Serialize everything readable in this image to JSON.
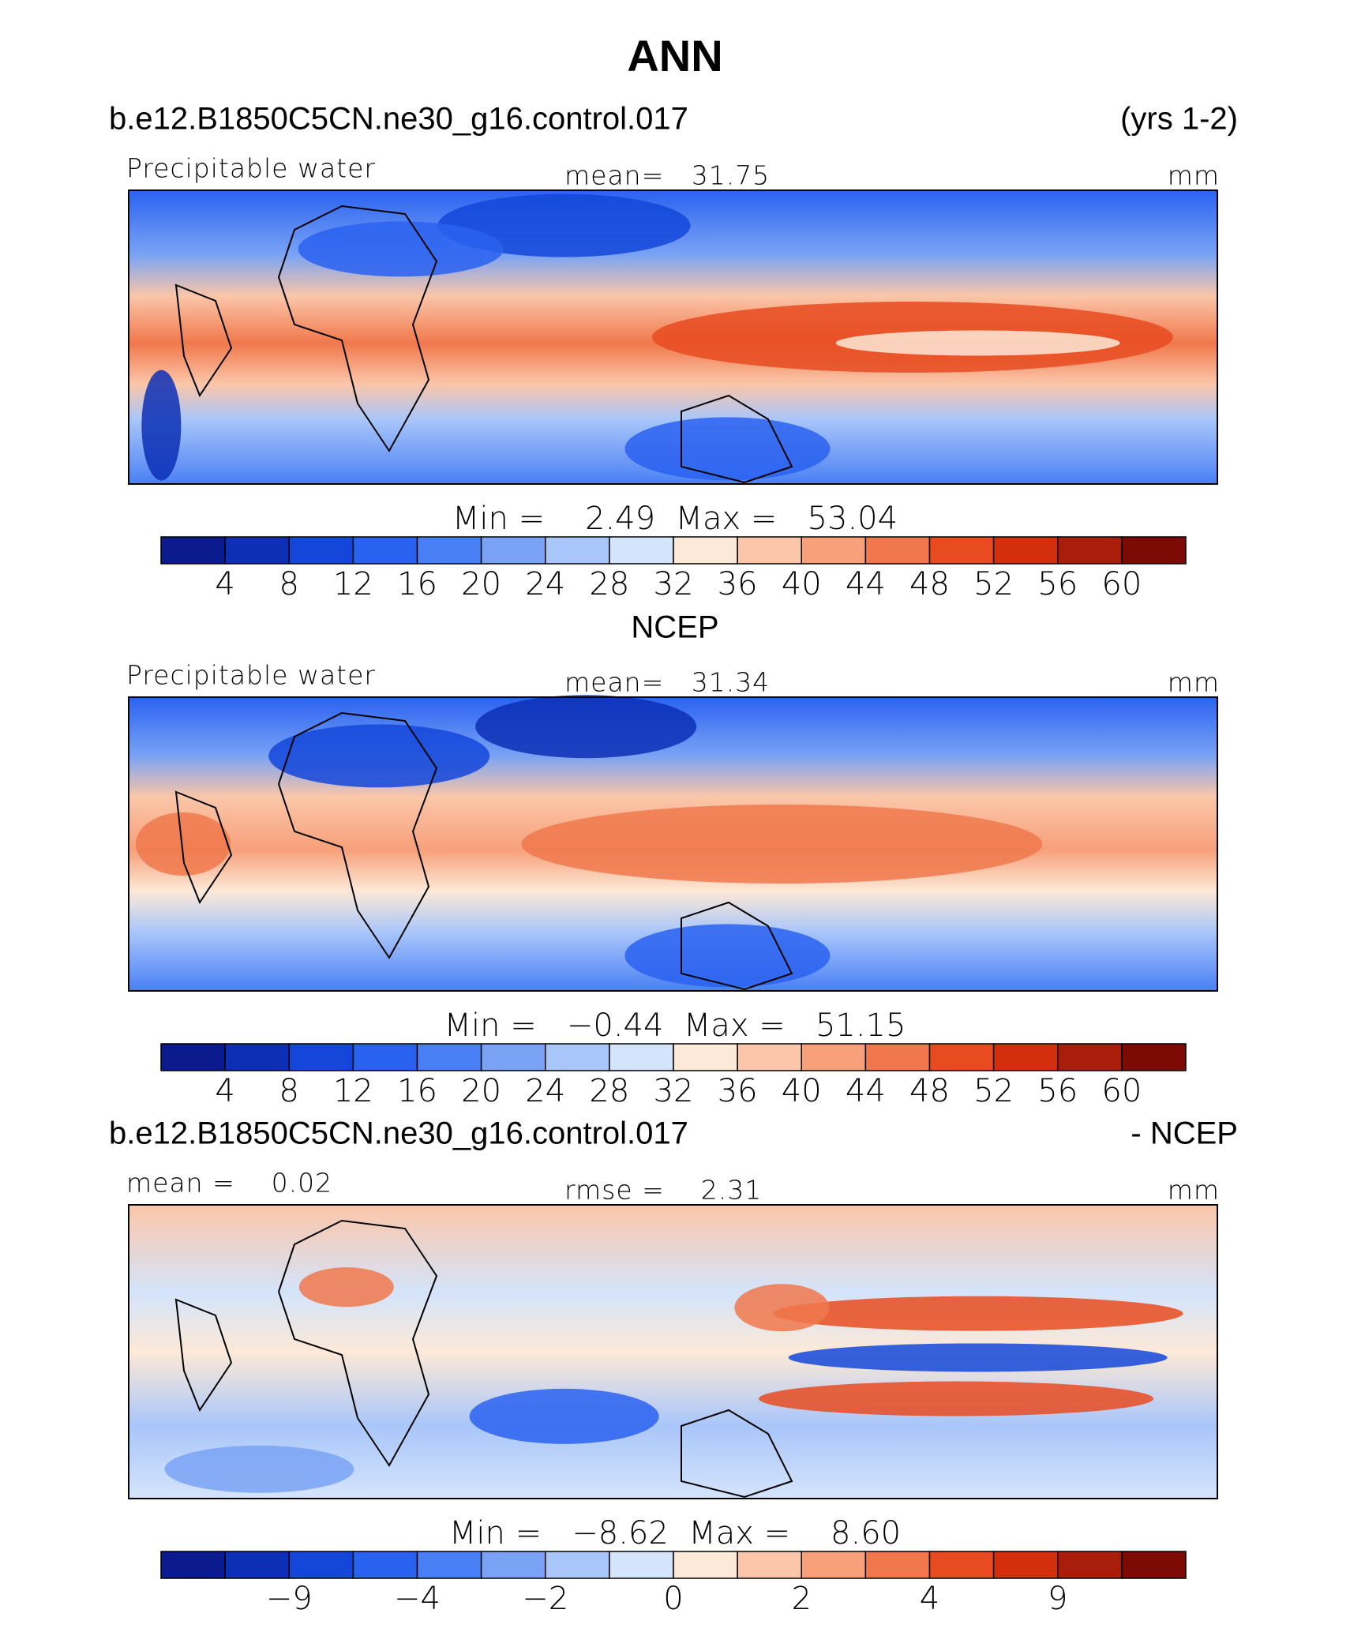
{
  "title": "ANN",
  "colorbar_colors": [
    "#0b1a8c",
    "#0c2fb5",
    "#1346d9",
    "#2a62f0",
    "#4a80f5",
    "#7aa3f5",
    "#a9c6fa",
    "#d4e4fb",
    "#fde9d7",
    "#fbc6a9",
    "#f7a07a",
    "#f0784c",
    "#e84b20",
    "#d32f0d",
    "#a91d0b",
    "#7c0a05"
  ],
  "panels": [
    {
      "header_left": "b.e12.B1850C5CN.ne30_g16.control.017",
      "header_right": "(yrs 1-2)",
      "label_left": "Precipitable water",
      "label_center": "mean=   31.75",
      "label_right": "mm",
      "stats": "Min =    2.49  Max =   53.04",
      "colorbar_labels": [
        "4",
        "8",
        "12",
        "16",
        "20",
        "24",
        "28",
        "32",
        "36",
        "40",
        "44",
        "48",
        "52",
        "56",
        "60"
      ]
    },
    {
      "header_center": "NCEP",
      "label_left": "Precipitable water",
      "label_center": "mean=   31.34",
      "label_right": "mm",
      "stats": "Min =   −0.44  Max =   51.15",
      "colorbar_labels": [
        "4",
        "8",
        "12",
        "16",
        "20",
        "24",
        "28",
        "32",
        "36",
        "40",
        "44",
        "48",
        "52",
        "56",
        "60"
      ]
    },
    {
      "header_left": "b.e12.B1850C5CN.ne30_g16.control.017",
      "header_right": "- NCEP",
      "label_left": "mean =    0.02",
      "label_center": "rmse =    2.31",
      "label_right": "mm",
      "stats": "Min =   −8.62  Max =    8.60",
      "colorbar_labels": [
        null,
        "−9",
        null,
        "−4",
        null,
        "−2",
        null,
        "0",
        null,
        "2",
        null,
        "4",
        null,
        "9",
        null
      ]
    }
  ]
}
